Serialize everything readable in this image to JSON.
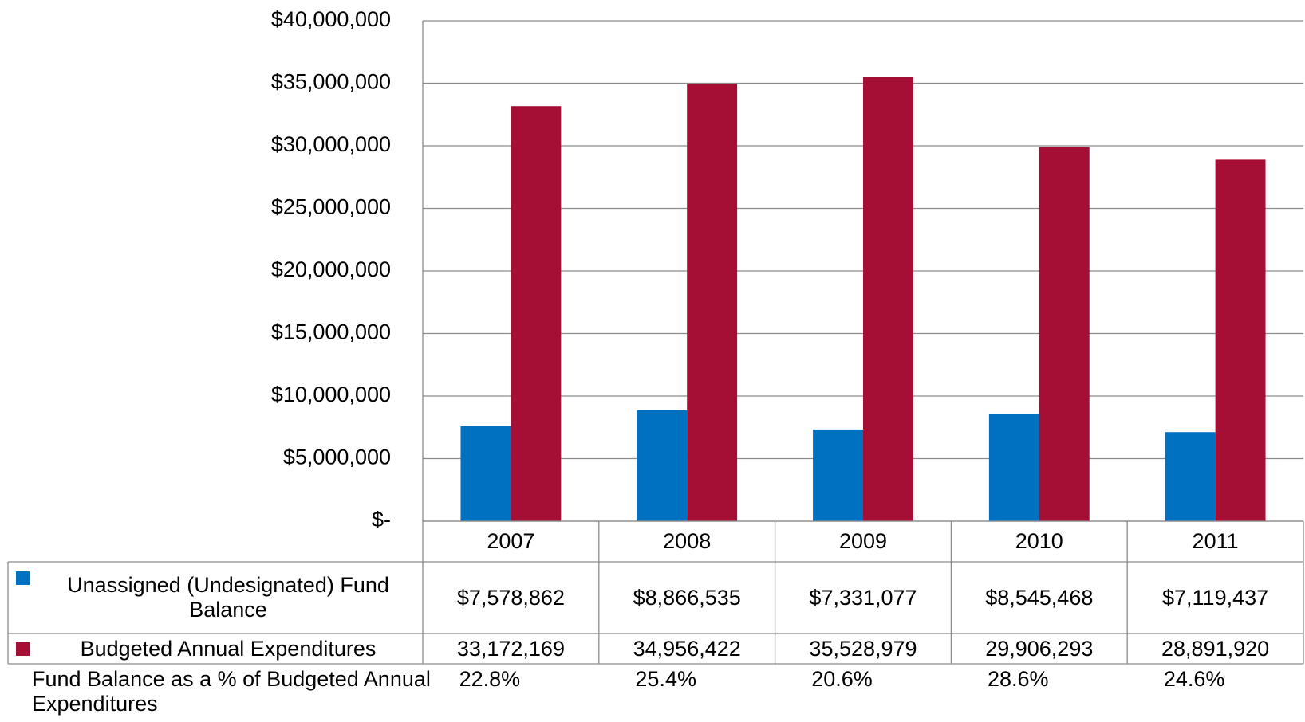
{
  "chart_data": {
    "type": "bar",
    "categories": [
      "2007",
      "2008",
      "2009",
      "2010",
      "2011"
    ],
    "series": [
      {
        "name": "Unassigned (Undesignated) Fund Balance",
        "color": "#0070c0",
        "values": [
          7578862,
          8866535,
          7331077,
          8545468,
          7119437
        ],
        "value_labels": [
          "$7,578,862",
          "$8,866,535",
          "$7,331,077",
          "$8,545,468",
          "$7,119,437"
        ]
      },
      {
        "name": "Budgeted Annual Expenditures",
        "color": "#a50e35",
        "values": [
          33172169,
          34956422,
          35528979,
          29906293,
          28891920
        ],
        "value_labels": [
          "33,172,169",
          "34,956,422",
          "35,528,979",
          "29,906,293",
          "28,891,920"
        ]
      }
    ],
    "ylim": [
      0,
      40000000
    ],
    "yticks": [
      {
        "value": 0,
        "label": "$-"
      },
      {
        "value": 5000000,
        "label": "$5,000,000"
      },
      {
        "value": 10000000,
        "label": "$10,000,000"
      },
      {
        "value": 15000000,
        "label": "$15,000,000"
      },
      {
        "value": 20000000,
        "label": "$20,000,000"
      },
      {
        "value": 25000000,
        "label": "$25,000,000"
      },
      {
        "value": 30000000,
        "label": "$30,000,000"
      },
      {
        "value": 35000000,
        "label": "$35,000,000"
      },
      {
        "value": 40000000,
        "label": "$40,000,000"
      }
    ],
    "grid": true,
    "percent_row": {
      "label": "Fund Balance as a % of Budgeted Annual Expenditures",
      "values": [
        "22.8%",
        "25.4%",
        "20.6%",
        "28.6%",
        "24.6%"
      ]
    }
  }
}
